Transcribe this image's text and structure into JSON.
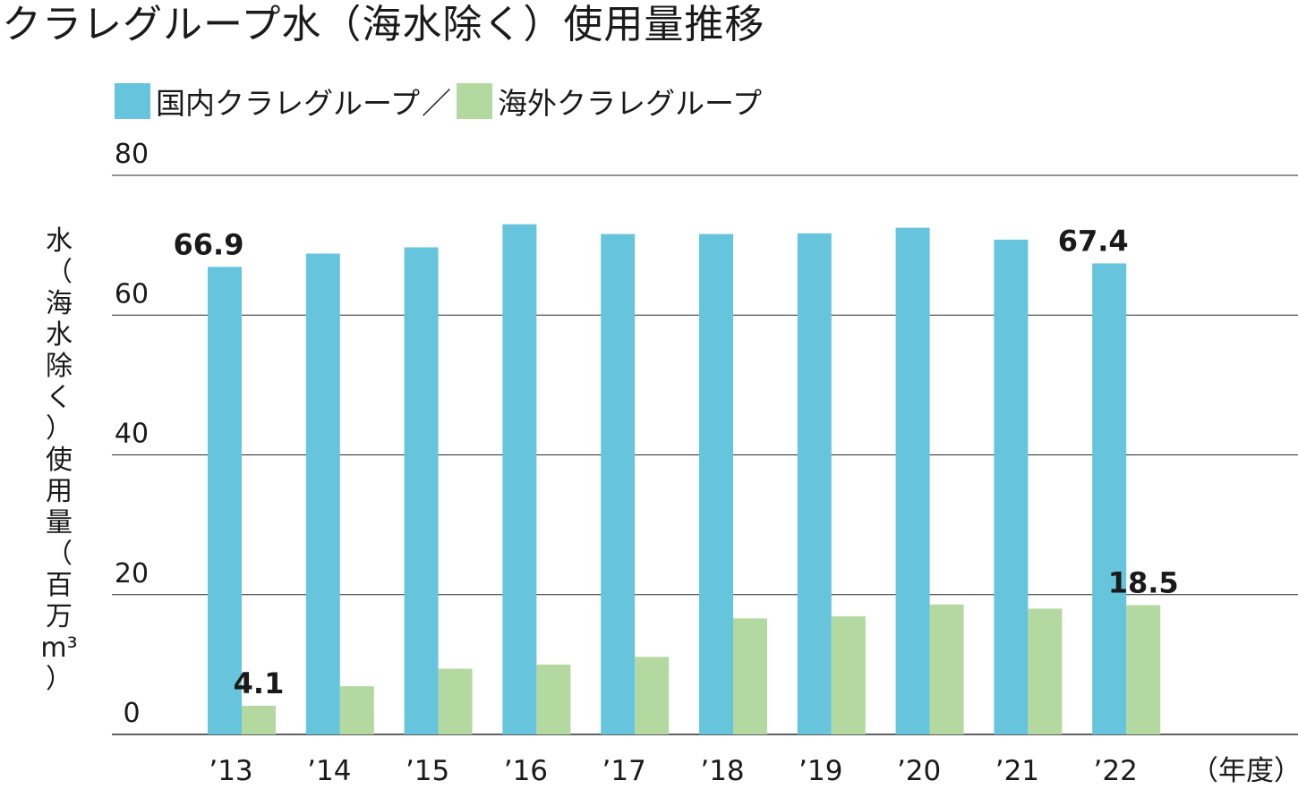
{
  "chart_data": {
    "type": "bar",
    "title": "クラレグループ水（海水除く）使用量推移",
    "ylabel_chars": [
      "水",
      "（",
      "海",
      "水",
      "除",
      "く",
      "）",
      "使",
      "用",
      "量",
      "（",
      "百",
      "万",
      "m³",
      "）"
    ],
    "xunit": "（年度）",
    "categories": [
      "’13",
      "’14",
      "’15",
      "’16",
      "’17",
      "’18",
      "’19",
      "’20",
      "’21",
      "’22"
    ],
    "series": [
      {
        "name": "国内クラレグループ",
        "color": "#66c4dc",
        "values": [
          66.9,
          68.8,
          69.7,
          73.0,
          71.6,
          71.6,
          71.7,
          72.5,
          70.8,
          67.4
        ]
      },
      {
        "name": "海外クラレグループ",
        "color": "#b3d9a1",
        "values": [
          4.1,
          6.9,
          9.4,
          10.0,
          11.1,
          16.6,
          16.9,
          18.6,
          18.0,
          18.5
        ]
      }
    ],
    "legend_separator": "／",
    "ylim": [
      0,
      80
    ],
    "yticks": [
      0,
      20,
      40,
      60,
      80
    ],
    "data_labels": [
      {
        "series": 0,
        "index": 0,
        "text": "66.9"
      },
      {
        "series": 1,
        "index": 0,
        "text": "4.1"
      },
      {
        "series": 0,
        "index": 9,
        "text": "67.4"
      },
      {
        "series": 1,
        "index": 9,
        "text": "18.5"
      }
    ],
    "grid": true,
    "legend_position": "top-left"
  }
}
